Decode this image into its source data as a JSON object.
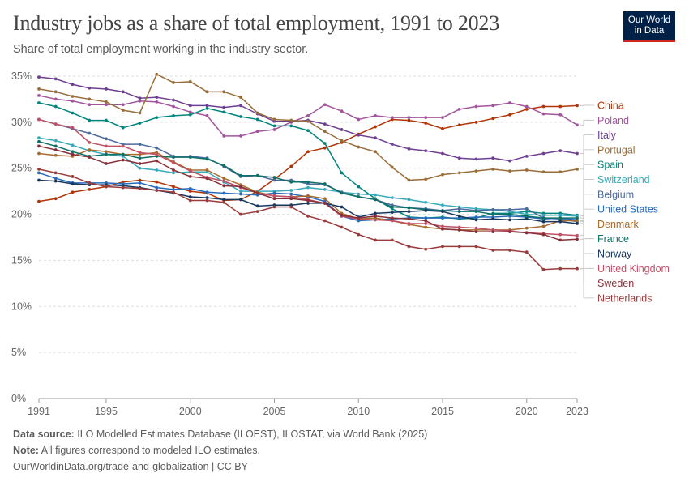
{
  "header": {
    "title": "Industry jobs as a share of total employment, 1991 to 2023",
    "subtitle": "Share of total employment working in the industry sector.",
    "logo_line1": "Our World",
    "logo_line2": "in Data"
  },
  "footer": {
    "source_label": "Data source:",
    "source_text": "ILO Modelled Estimates Database (ILOEST), ILOSTAT, via World Bank (2025)",
    "note_label": "Note:",
    "note_text": "All figures correspond to modeled ILO estimates.",
    "url_text": "OurWorldinData.org/trade-and-globalization | CC BY"
  },
  "chart_data": {
    "type": "line",
    "title": "Industry jobs as a share of total employment, 1991 to 2023",
    "subtitle": "Share of total employment working in the industry sector.",
    "xlim": [
      1991,
      2023
    ],
    "ylim": [
      0,
      35
    ],
    "x_ticks": [
      "1991",
      "1995",
      "2000",
      "2005",
      "2010",
      "2015",
      "2020",
      "2023"
    ],
    "y_ticks": [
      "0%",
      "5%",
      "10%",
      "15%",
      "20%",
      "25%",
      "30%",
      "35%"
    ],
    "grid": "horizontal-dashed",
    "legend": "right-labels",
    "x": [
      1991,
      1992,
      1993,
      1994,
      1995,
      1996,
      1997,
      1998,
      1999,
      2000,
      2001,
      2002,
      2003,
      2004,
      2005,
      2006,
      2007,
      2008,
      2009,
      2010,
      2011,
      2012,
      2013,
      2014,
      2015,
      2016,
      2017,
      2018,
      2019,
      2020,
      2021,
      2022,
      2023
    ],
    "series": [
      {
        "name": "China",
        "color": "#b13507",
        "values": [
          21.4,
          21.7,
          22.4,
          22.7,
          23.0,
          23.5,
          23.7,
          23.5,
          23.0,
          22.5,
          22.3,
          21.5,
          21.6,
          22.5,
          23.8,
          25.2,
          26.8,
          27.2,
          27.8,
          28.7,
          29.5,
          30.3,
          30.2,
          29.9,
          29.3,
          29.7,
          30.0,
          30.4,
          30.8,
          31.4,
          31.7,
          31.7,
          31.8
        ]
      },
      {
        "name": "Poland",
        "color": "#a2559c",
        "values": [
          32.9,
          32.5,
          32.3,
          31.9,
          31.9,
          31.9,
          32.3,
          32.2,
          31.7,
          31.1,
          30.7,
          28.5,
          28.5,
          29.0,
          29.2,
          30.0,
          30.7,
          31.9,
          31.2,
          30.3,
          30.7,
          30.5,
          30.5,
          30.5,
          30.5,
          31.4,
          31.7,
          31.8,
          32.1,
          31.7,
          30.9,
          30.8,
          29.7
        ]
      },
      {
        "name": "Italy",
        "color": "#6d3e91",
        "values": [
          34.9,
          34.7,
          34.1,
          33.7,
          33.6,
          33.3,
          32.6,
          32.7,
          32.4,
          31.8,
          31.8,
          31.6,
          31.8,
          30.9,
          30.1,
          30.1,
          30.2,
          29.8,
          29.2,
          28.6,
          28.3,
          27.6,
          27.1,
          26.9,
          26.6,
          26.1,
          26.0,
          26.1,
          25.8,
          26.3,
          26.6,
          26.9,
          26.6
        ]
      },
      {
        "name": "Portugal",
        "color": "#996d39",
        "values": [
          33.6,
          33.3,
          32.8,
          32.5,
          32.2,
          31.3,
          31.0,
          35.2,
          34.3,
          34.4,
          33.3,
          33.3,
          32.7,
          31.0,
          30.3,
          30.2,
          30.1,
          29.0,
          28.0,
          27.3,
          26.8,
          25.1,
          23.7,
          23.8,
          24.3,
          24.5,
          24.7,
          24.9,
          24.7,
          24.8,
          24.6,
          24.6,
          24.9
        ]
      },
      {
        "name": "Spain",
        "color": "#00847e",
        "values": [
          32.1,
          31.7,
          31.0,
          30.2,
          30.2,
          29.4,
          29.9,
          30.5,
          30.7,
          30.8,
          31.5,
          31.1,
          30.6,
          30.3,
          29.6,
          29.6,
          29.1,
          27.7,
          24.5,
          23.0,
          21.7,
          20.6,
          19.7,
          19.6,
          19.7,
          19.5,
          19.6,
          20.1,
          20.1,
          20.3,
          20.1,
          20.1,
          19.9
        ]
      },
      {
        "name": "Switzerland",
        "color": "#38aaba",
        "values": [
          28.3,
          28.0,
          27.5,
          26.9,
          26.5,
          26.3,
          25.0,
          24.8,
          24.5,
          24.6,
          24.6,
          23.5,
          22.5,
          22.5,
          22.5,
          22.6,
          22.9,
          22.7,
          22.4,
          22.2,
          22.1,
          21.8,
          21.6,
          21.3,
          21.0,
          20.8,
          20.6,
          20.5,
          20.3,
          20.0,
          19.9,
          19.9,
          19.8
        ]
      },
      {
        "name": "Belgium",
        "color": "#4c6a9c",
        "values": [
          30.3,
          29.8,
          29.3,
          28.8,
          28.2,
          27.6,
          27.6,
          27.2,
          26.3,
          26.3,
          26.1,
          25.2,
          24.1,
          24.2,
          23.7,
          23.7,
          23.3,
          23.2,
          22.4,
          21.9,
          21.6,
          21.0,
          20.7,
          20.6,
          20.4,
          20.6,
          20.4,
          20.5,
          20.5,
          20.6,
          19.6,
          19.5,
          19.2
        ]
      },
      {
        "name": "United States",
        "color": "#286bbb",
        "values": [
          24.5,
          23.9,
          23.4,
          23.4,
          23.4,
          23.3,
          23.4,
          22.9,
          22.7,
          22.8,
          22.4,
          22.3,
          22.2,
          22.1,
          22.3,
          22.2,
          21.9,
          21.4,
          19.8,
          19.3,
          19.4,
          19.5,
          19.6,
          19.6,
          19.6,
          19.6,
          19.7,
          19.7,
          19.8,
          19.7,
          19.5,
          19.6,
          19.4
        ]
      },
      {
        "name": "Denmark",
        "color": "#a86b2e",
        "values": [
          26.6,
          26.4,
          26.3,
          27.0,
          26.8,
          26.5,
          26.5,
          26.7,
          25.7,
          24.8,
          24.8,
          23.9,
          23.2,
          22.4,
          22.0,
          21.9,
          22.0,
          21.7,
          20.1,
          19.5,
          19.6,
          19.3,
          18.9,
          18.6,
          18.4,
          18.3,
          18.3,
          18.3,
          18.3,
          18.5,
          18.7,
          19.3,
          19.3
        ]
      },
      {
        "name": "France",
        "color": "#0f7066",
        "values": [
          27.9,
          27.4,
          26.8,
          26.3,
          26.5,
          26.5,
          26.1,
          26.3,
          26.2,
          26.2,
          26.0,
          25.3,
          24.2,
          24.2,
          24.0,
          23.5,
          23.5,
          23.3,
          22.3,
          21.9,
          21.6,
          20.8,
          20.7,
          20.5,
          20.4,
          20.3,
          20.3,
          20.0,
          20.0,
          19.8,
          19.6,
          19.6,
          19.6
        ]
      },
      {
        "name": "Norway",
        "color": "#18375f",
        "values": [
          23.7,
          23.6,
          23.3,
          23.2,
          23.2,
          23.1,
          22.9,
          22.6,
          22.3,
          21.9,
          21.8,
          21.6,
          21.6,
          20.9,
          21.0,
          21.0,
          21.2,
          21.2,
          20.8,
          19.7,
          20.1,
          20.2,
          20.3,
          20.4,
          20.3,
          19.8,
          19.4,
          19.5,
          19.4,
          19.5,
          19.2,
          19.2,
          19.0
        ]
      },
      {
        "name": "United Kingdom",
        "color": "#c15065",
        "values": [
          30.3,
          29.8,
          29.4,
          27.8,
          27.4,
          27.4,
          26.7,
          26.5,
          25.6,
          24.7,
          24.0,
          23.6,
          22.9,
          22.3,
          22.0,
          21.9,
          21.6,
          21.2,
          19.8,
          19.5,
          19.4,
          19.3,
          19.0,
          19.0,
          18.7,
          18.6,
          18.5,
          18.3,
          18.2,
          18.0,
          17.9,
          17.8,
          17.7
        ]
      },
      {
        "name": "Sweden",
        "color": "#883039",
        "values": [
          27.4,
          27.0,
          26.5,
          26.2,
          25.5,
          25.9,
          25.5,
          25.8,
          24.8,
          24.1,
          23.9,
          23.1,
          23.0,
          22.3,
          21.7,
          21.7,
          21.5,
          21.2,
          19.9,
          19.6,
          19.8,
          19.6,
          19.5,
          19.3,
          18.4,
          18.3,
          18.1,
          18.1,
          18.1,
          18.0,
          17.8,
          17.2,
          17.3
        ]
      },
      {
        "name": "Netherlands",
        "color": "#9a3b3b",
        "values": [
          24.9,
          24.5,
          24.1,
          23.4,
          23.0,
          22.9,
          22.8,
          22.6,
          22.4,
          21.5,
          21.5,
          21.3,
          20.0,
          20.3,
          20.8,
          20.8,
          19.8,
          19.3,
          18.6,
          17.8,
          17.2,
          17.2,
          16.5,
          16.2,
          16.5,
          16.5,
          16.5,
          16.1,
          16.1,
          15.9,
          14.0,
          14.1,
          14.1
        ]
      }
    ]
  }
}
